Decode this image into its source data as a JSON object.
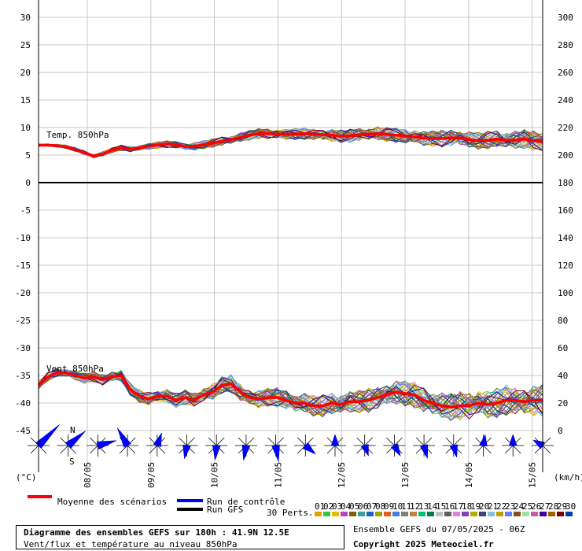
{
  "chart_data": {
    "type": "line",
    "title": "Diagramme des ensembles GEFS sur 180h : 41.9N 12.5E",
    "subtitle": "Vent/flux et température au niveau 850hPa",
    "ensemble_label": "Ensemble GEFS du 07/05/2025 - 06Z",
    "copyright": "Copyright 2025 Meteociel.fr",
    "left_unit": "(°C)",
    "right_unit": "(km/h)",
    "left_ticks": [
      "30",
      "25",
      "20",
      "15",
      "10",
      "5",
      "0",
      "-5",
      "-10",
      "-15",
      "-20",
      "-25",
      "-30",
      "-35",
      "-40",
      "-45"
    ],
    "right_ticks": [
      "300",
      "280",
      "260",
      "240",
      "220",
      "200",
      "180",
      "160",
      "140",
      "120",
      "100",
      "80",
      "60",
      "40",
      "20",
      "0"
    ],
    "x_ticks": [
      "08/05",
      "09/05",
      "10/05",
      "11/05",
      "12/05",
      "13/05",
      "14/05",
      "15/05"
    ],
    "panel_labels": {
      "temp": "Temp. 850hPa",
      "wind": "Vent 850hPa"
    },
    "legend": {
      "mean": "Moyenne des scénarios",
      "control": "Run de contrôle",
      "gfs": "Run GFS",
      "perts": "30 Perts."
    },
    "pert_labels": [
      "01",
      "02",
      "03",
      "04",
      "05",
      "06",
      "07",
      "08",
      "09",
      "10",
      "11",
      "12",
      "13",
      "14",
      "15",
      "16",
      "17",
      "18",
      "19",
      "20",
      "21",
      "22",
      "23",
      "24",
      "25",
      "26",
      "27",
      "28",
      "29",
      "30"
    ],
    "pert_colors": [
      "#e0a000",
      "#40c040",
      "#e0c000",
      "#c040c0",
      "#806000",
      "#40a0a0",
      "#2060c0",
      "#a0a000",
      "#e06020",
      "#4080e0",
      "#808080",
      "#c08040",
      "#00c080",
      "#008040",
      "#c0c0c0",
      "#606060",
      "#e080e0",
      "#8040c0",
      "#b0b000",
      "#404080",
      "#80c0e0",
      "#c0a000",
      "#6080ff",
      "#805020",
      "#a0e0a0",
      "#c060a0",
      "#4000a0",
      "#a06000",
      "#800000",
      "#0040a0"
    ],
    "compass": [
      "N",
      "S"
    ],
    "temperature_mean": [
      6.8,
      6.8,
      6.7,
      6.5,
      6.0,
      5.4,
      4.8,
      5.2,
      5.9,
      6.3,
      6.1,
      6.3,
      6.6,
      6.8,
      7.0,
      6.9,
      6.5,
      6.6,
      6.9,
      7.2,
      7.5,
      7.8,
      8.2,
      8.6,
      8.9,
      8.9,
      8.8,
      8.8,
      8.8,
      8.9,
      8.8,
      8.7,
      8.6,
      8.4,
      8.5,
      8.7,
      8.8,
      8.9,
      8.8,
      8.6,
      8.5,
      8.3,
      8.1,
      8.0,
      8.0,
      8.1,
      8.1,
      7.8,
      7.6,
      7.7,
      7.9,
      7.7,
      7.7,
      7.9,
      7.6,
      7.4
    ],
    "wind_mean": [
      33,
      39,
      42,
      42,
      40,
      38,
      39,
      37,
      39,
      40,
      30,
      25,
      23,
      25,
      25,
      22,
      24,
      22,
      26,
      28,
      33,
      34,
      28,
      24,
      23,
      24,
      24,
      22,
      20,
      20,
      18,
      18,
      20,
      19,
      21,
      21,
      22,
      24,
      26,
      28,
      27,
      26,
      22,
      20,
      18,
      17,
      18,
      18,
      20,
      19,
      20,
      22,
      22,
      21,
      22,
      22
    ],
    "wind_arrows": [
      {
        "dir": 225,
        "speed": 40
      },
      {
        "dir": 230,
        "speed": 28
      },
      {
        "dir": 255,
        "speed": 22
      },
      {
        "dir": 150,
        "speed": 24
      },
      {
        "dir": 200,
        "speed": 12
      },
      {
        "dir": 10,
        "speed": 12
      },
      {
        "dir": 5,
        "speed": 14
      },
      {
        "dir": 10,
        "speed": 15
      },
      {
        "dir": 350,
        "speed": 17
      },
      {
        "dir": 310,
        "speed": 12
      },
      {
        "dir": 180,
        "speed": 8
      },
      {
        "dir": 340,
        "speed": 8
      },
      {
        "dir": 330,
        "speed": 10
      },
      {
        "dir": 345,
        "speed": 12
      },
      {
        "dir": 345,
        "speed": 10
      },
      {
        "dir": 190,
        "speed": 8
      },
      {
        "dir": 180,
        "speed": 8
      },
      {
        "dir": 120,
        "speed": 8
      }
    ]
  }
}
